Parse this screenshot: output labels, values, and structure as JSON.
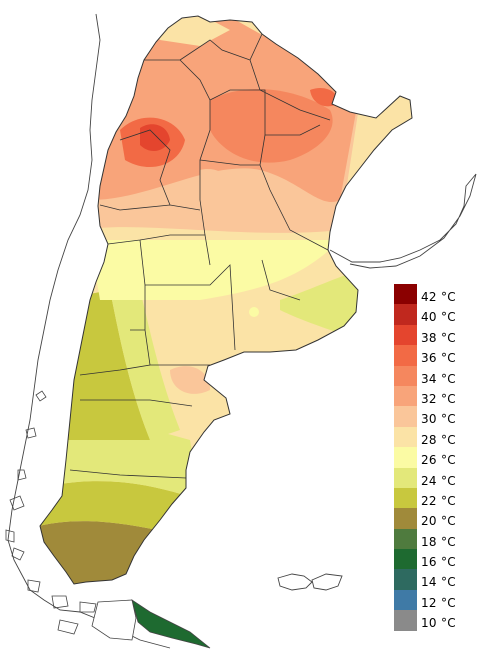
{
  "legend": {
    "items": [
      {
        "label": "42 °C",
        "color": "#8B0000"
      },
      {
        "label": "40 °C",
        "color": "#C0281E"
      },
      {
        "label": "38 °C",
        "color": "#E4452E"
      },
      {
        "label": "36 °C",
        "color": "#F26A45"
      },
      {
        "label": "34 °C",
        "color": "#F5875E"
      },
      {
        "label": "32 °C",
        "color": "#F8A47A"
      },
      {
        "label": "30 °C",
        "color": "#FAC69A"
      },
      {
        "label": "28 °C",
        "color": "#FBE3A6"
      },
      {
        "label": "26 °C",
        "color": "#FBFBA4"
      },
      {
        "label": "24 °C",
        "color": "#E3E87A"
      },
      {
        "label": "22 °C",
        "color": "#C8C83E"
      },
      {
        "label": "20 °C",
        "color": "#A08A3A"
      },
      {
        "label": "18 °C",
        "color": "#4F7B3E"
      },
      {
        "label": "16 °C",
        "color": "#1E6A30"
      },
      {
        "label": "14 °C",
        "color": "#2E6A60"
      },
      {
        "label": "12 °C",
        "color": "#3F7AA6"
      },
      {
        "label": "10 °C",
        "color": "#8A8A8A"
      }
    ]
  }
}
